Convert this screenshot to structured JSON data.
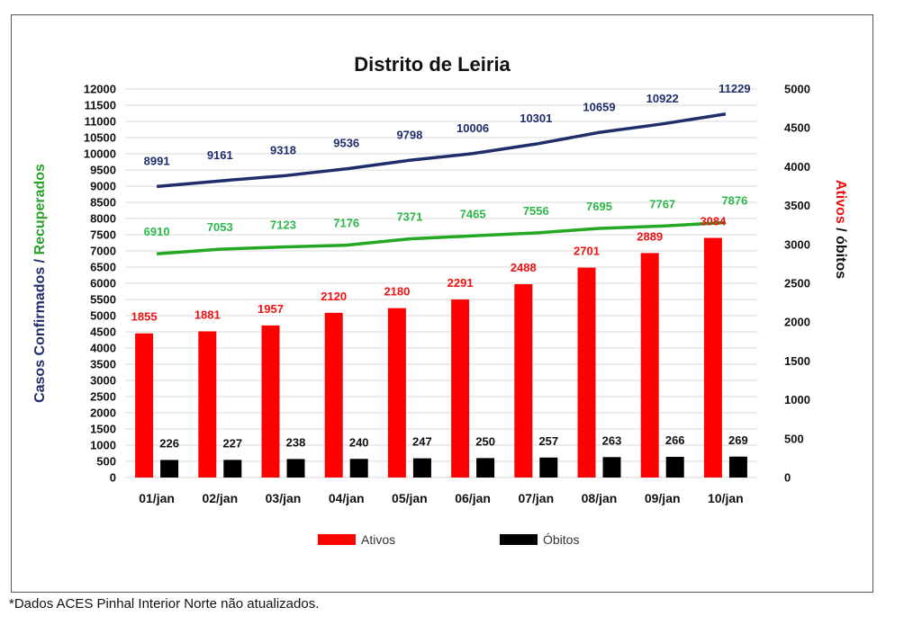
{
  "footnote": "*Dados ACES Pinhal Interior Norte não atualizados.",
  "chart_data": {
    "type": "bar",
    "title": "Distrito de Leiria",
    "categories": [
      "01/jan",
      "02/jan",
      "03/jan",
      "04/jan",
      "05/jan",
      "06/jan",
      "07/jan",
      "08/jan",
      "09/jan",
      "10/jan"
    ],
    "left_axis": {
      "label_parts": [
        {
          "text": "Casos Confirmados",
          "color": "#1f2d6b"
        },
        {
          "text": " / ",
          "color": "#1f2d6b"
        },
        {
          "text": "Recuperados",
          "color": "#2aa12a"
        }
      ],
      "range": [
        0,
        12000
      ],
      "step": 500
    },
    "right_axis": {
      "label_parts": [
        {
          "text": "Ativos",
          "color": "#ee1111"
        },
        {
          "text": " / óbitos",
          "color": "#111111"
        }
      ],
      "range": [
        0,
        5000
      ],
      "step": 500
    },
    "series": [
      {
        "name": "Casos Confirmados",
        "type": "line",
        "axis": "left",
        "color": "#1f2d6b",
        "values": [
          8991,
          9161,
          9318,
          9536,
          9798,
          10006,
          10301,
          10659,
          10922,
          11229
        ]
      },
      {
        "name": "Recuperados",
        "type": "line",
        "axis": "left",
        "color": "#22a822",
        "values": [
          6910,
          7053,
          7123,
          7176,
          7371,
          7465,
          7556,
          7695,
          7767,
          7876
        ]
      },
      {
        "name": "Ativos",
        "type": "bar",
        "axis": "right",
        "color": "#ff0000",
        "values": [
          1855,
          1881,
          1957,
          2120,
          2180,
          2291,
          2488,
          2701,
          2889,
          3084
        ]
      },
      {
        "name": "Óbitos",
        "type": "bar",
        "axis": "right",
        "color": "#000000",
        "values": [
          226,
          227,
          238,
          240,
          247,
          250,
          257,
          263,
          266,
          269
        ]
      }
    ],
    "legend": {
      "position": "bottom",
      "entries": [
        "Ativos",
        "Óbitos"
      ]
    },
    "grid": true
  }
}
